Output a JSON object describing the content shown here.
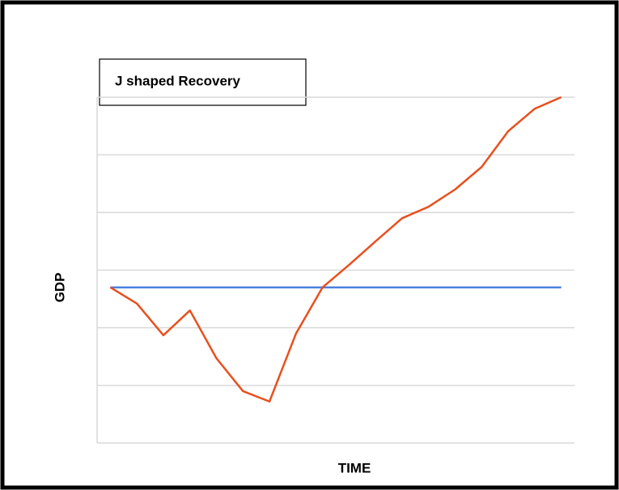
{
  "chart_data": {
    "type": "line",
    "title": "J shaped Recovery",
    "x_label": "TIME",
    "y_label": "GDP",
    "categories": [
      null,
      null,
      null,
      null,
      null,
      null,
      null,
      null,
      null,
      null,
      null,
      null,
      null,
      null,
      null,
      null,
      null,
      null
    ],
    "series": [
      {
        "color": "#e8501e",
        "values": [
          2.7,
          2.42,
          1.87,
          2.3,
          1.47,
          0.9,
          0.72,
          1.9,
          2.7,
          3.09,
          3.5,
          3.9,
          4.1,
          4.4,
          4.79,
          5.41,
          5.8,
          6.0
        ]
      },
      {
        "color": "#4a7fe0",
        "values": [
          2.7,
          2.7,
          2.7,
          2.7,
          2.7,
          2.7,
          2.7,
          2.7,
          2.7,
          2.7,
          2.7,
          2.7,
          2.7,
          2.7,
          2.7,
          2.7,
          2.7,
          2.7
        ]
      }
    ],
    "ylim": [
      0,
      6
    ],
    "yticks": [
      0,
      1,
      2,
      3,
      4,
      5,
      6
    ],
    "grid": true
  }
}
